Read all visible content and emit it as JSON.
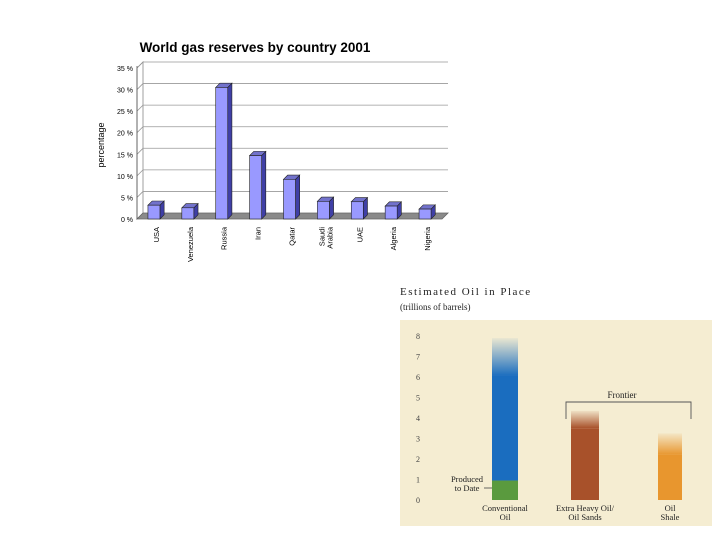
{
  "chart_data": [
    {
      "type": "bar",
      "title": "World gas reserves by country 2001",
      "ylabel": "percentage",
      "xlabel": "",
      "categories": [
        "USA",
        "Venezuela",
        "Russia",
        "Iran",
        "Qatar",
        "Saudi Arabia",
        "UAE",
        "Algeria",
        "Nigeria"
      ],
      "category_labels": [
        [
          "USA"
        ],
        [
          "Venezuela"
        ],
        [
          "Russia"
        ],
        [
          "Iran"
        ],
        [
          "Qatar"
        ],
        [
          "Saudi",
          "Arabia"
        ],
        [
          "UAE"
        ],
        [
          "Algeria"
        ],
        [
          "Nigeria"
        ]
      ],
      "values": [
        3.2,
        2.6,
        30.5,
        14.7,
        9.2,
        4.1,
        4.0,
        3.0,
        2.3
      ],
      "ylim": [
        0,
        35
      ],
      "yticks": [
        0,
        5,
        10,
        15,
        20,
        25,
        30,
        35
      ],
      "ytick_labels": [
        "0 %",
        "5 %",
        "10 %",
        "15 %",
        "20 %",
        "25 %",
        "30 %",
        "35 %"
      ],
      "grid": true,
      "colors": {
        "bar": "#9999ff",
        "bar_side": "#3f3fa6",
        "bar_top": "#7272cc"
      }
    },
    {
      "type": "bar",
      "stacked": true,
      "title": "Estimated Oil in Place",
      "subtitle": "(trillions of barrels)",
      "ylabel": "",
      "xlabel": "",
      "categories": [
        "Conventional Oil",
        "Extra Heavy Oil/ Oil Sands",
        "Oil Shale"
      ],
      "category_labels": [
        [
          "Conventional",
          "Oil"
        ],
        [
          "Extra Heavy Oil/",
          "Oil Sands"
        ],
        [
          "Oil",
          "Shale"
        ]
      ],
      "ylim": [
        0,
        8
      ],
      "yticks": [
        0,
        1,
        2,
        3,
        4,
        5,
        6,
        7,
        8
      ],
      "series": [
        {
          "name": "Produced to Date",
          "values": [
            0.95,
            0,
            0
          ]
        },
        {
          "values": [
            5.1,
            3.5,
            2.2
          ]
        },
        {
          "values": [
            1.85,
            0.85,
            1.05
          ]
        }
      ],
      "annotations": {
        "produced": [
          "Produced",
          "to Date"
        ],
        "frontier": "Frontier"
      },
      "colors": {
        "background": "#f5edd2",
        "produced": "#5a9a3e",
        "conventional": "#1a6dbf",
        "oil_sands": "#a8512a",
        "oil_shale": "#e8962e"
      }
    }
  ]
}
